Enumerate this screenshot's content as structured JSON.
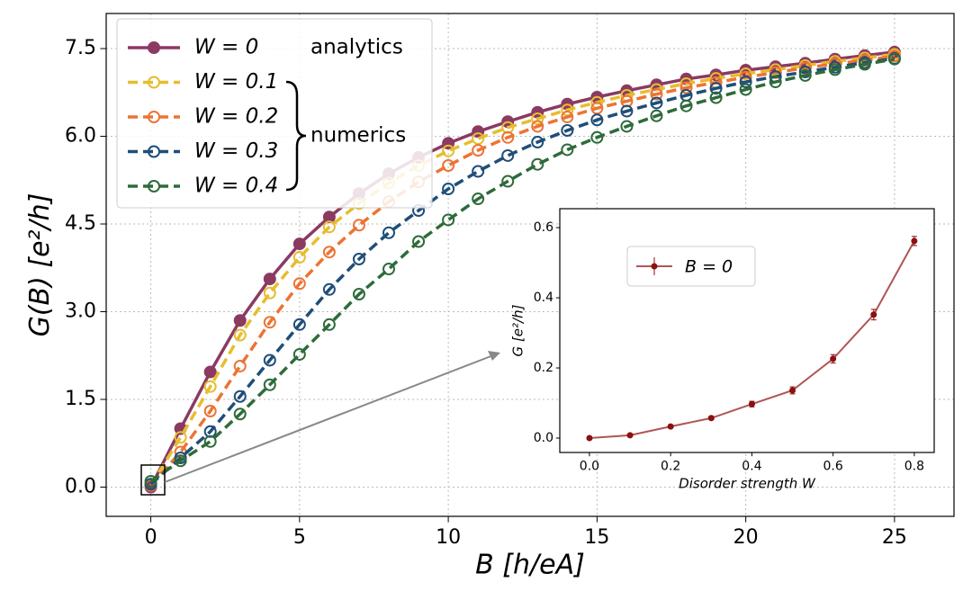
{
  "chart_data": [
    {
      "type": "line",
      "xlabel": "B [h/eA]",
      "ylabel": "G(B) [e²/h]",
      "x": [
        0,
        1,
        2,
        3,
        4,
        5,
        6,
        7,
        8,
        9,
        10,
        11,
        12,
        13,
        14,
        15,
        16,
        17,
        18,
        19,
        20,
        21,
        22,
        23,
        24,
        25
      ],
      "series": [
        {
          "name": "W = 0",
          "color": "#8b3a62",
          "linestyle": "solid",
          "marker": "filled",
          "values": [
            0,
            1.0,
            1.97,
            2.85,
            3.56,
            4.16,
            4.62,
            5.02,
            5.36,
            5.64,
            5.88,
            6.08,
            6.25,
            6.41,
            6.55,
            6.67,
            6.78,
            6.88,
            6.98,
            7.05,
            7.13,
            7.19,
            7.25,
            7.32,
            7.38,
            7.44
          ]
        },
        {
          "name": "W = 0.1",
          "color": "#e6bd2e",
          "linestyle": "dashed",
          "marker": "open",
          "values": [
            0.03,
            0.85,
            1.72,
            2.6,
            3.32,
            3.93,
            4.45,
            4.85,
            5.2,
            5.5,
            5.75,
            5.96,
            6.15,
            6.3,
            6.45,
            6.58,
            6.7,
            6.8,
            6.9,
            6.99,
            7.07,
            7.14,
            7.21,
            7.28,
            7.34,
            7.4
          ]
        },
        {
          "name": "W = 0.2",
          "color": "#ec7434",
          "linestyle": "dashed",
          "marker": "open",
          "values": [
            0.03,
            0.6,
            1.3,
            2.07,
            2.82,
            3.48,
            4.02,
            4.48,
            4.88,
            5.22,
            5.5,
            5.76,
            5.98,
            6.17,
            6.33,
            6.48,
            6.6,
            6.72,
            6.83,
            6.92,
            7.01,
            7.09,
            7.17,
            7.24,
            7.3,
            7.37
          ]
        },
        {
          "name": "W = 0.3",
          "color": "#1f4e79",
          "linestyle": "dashed",
          "marker": "open",
          "values": [
            0.05,
            0.5,
            0.95,
            1.55,
            2.17,
            2.78,
            3.38,
            3.9,
            4.35,
            4.73,
            5.1,
            5.4,
            5.67,
            5.9,
            6.1,
            6.28,
            6.43,
            6.57,
            6.7,
            6.82,
            6.93,
            7.02,
            7.1,
            7.18,
            7.26,
            7.33
          ]
        },
        {
          "name": "W = 0.4",
          "color": "#2e6b3a",
          "linestyle": "dashed",
          "marker": "open",
          "values": [
            0.1,
            0.45,
            0.78,
            1.25,
            1.75,
            2.27,
            2.78,
            3.3,
            3.73,
            4.2,
            4.57,
            4.93,
            5.23,
            5.52,
            5.77,
            5.98,
            6.17,
            6.35,
            6.52,
            6.66,
            6.8,
            6.93,
            7.04,
            7.14,
            7.23,
            7.32
          ]
        }
      ],
      "annotations": [
        "analytics",
        "numerics"
      ],
      "xlim": [
        -1.5,
        27
      ],
      "ylim": [
        -0.5,
        8.1
      ],
      "xticks": [
        0,
        5,
        10,
        15,
        20,
        25
      ],
      "yticks": [
        {
          "value": 0,
          "label": "0.0"
        },
        1.5,
        {
          "value": 3,
          "label": "3.0"
        },
        4.5,
        {
          "value": 6,
          "label": "6.0"
        },
        7.5
      ],
      "grid": true,
      "legend": "upper left"
    },
    {
      "type": "errorbar",
      "xlabel": "Disorder strength W",
      "ylabel": "G [e²/h]",
      "series": [
        {
          "name": "B = 0",
          "color": "#8b1010",
          "line_color": "#b05555",
          "x": [
            0,
            0.1,
            0.2,
            0.3,
            0.4,
            0.5,
            0.6,
            0.7,
            0.8
          ],
          "values": [
            0,
            0.008,
            0.033,
            0.057,
            0.097,
            0.136,
            0.226,
            0.352,
            0.562
          ],
          "errors": [
            0.001,
            0.002,
            0.003,
            0.004,
            0.008,
            0.01,
            0.012,
            0.015,
            0.013
          ]
        }
      ],
      "xlim": [
        -0.073,
        0.849
      ],
      "ylim": [
        -0.041,
        0.654
      ],
      "xticks": [
        {
          "value": 0,
          "label": "0.0"
        },
        0.2,
        0.4,
        0.6,
        0.8
      ],
      "yticks": [
        {
          "value": 0,
          "label": "0.0"
        },
        0.2,
        0.4,
        0.6
      ],
      "grid": false,
      "legend": "upper left"
    }
  ]
}
